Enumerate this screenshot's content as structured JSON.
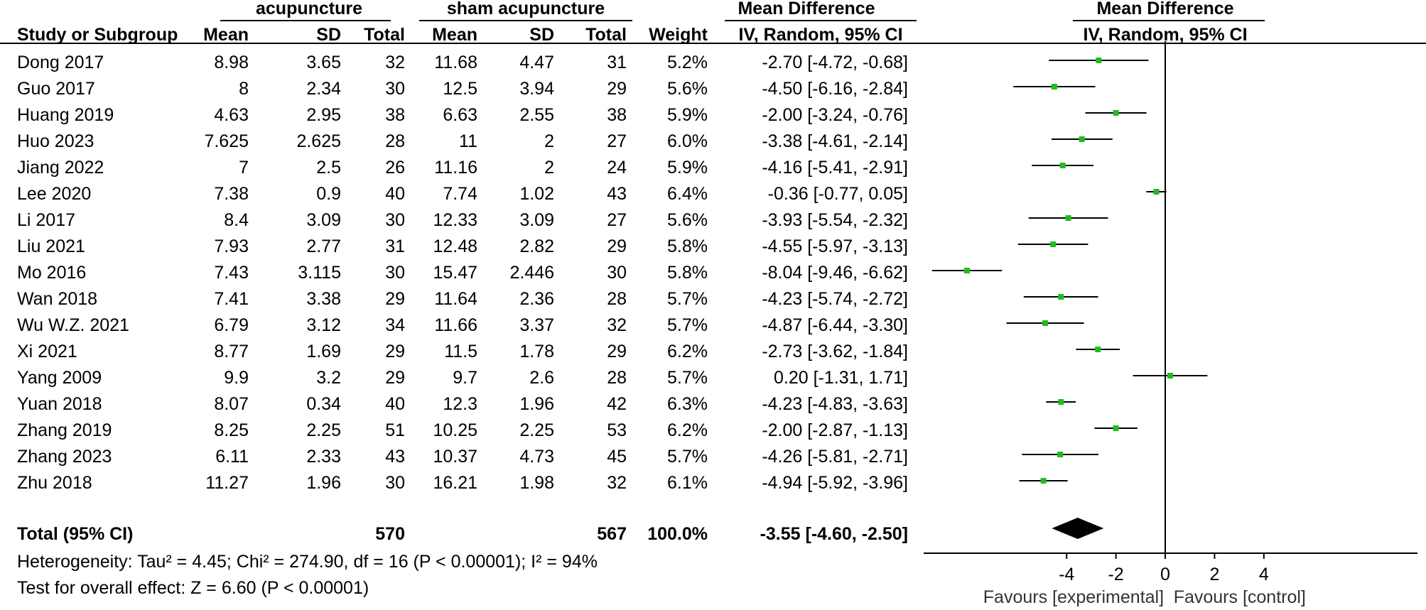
{
  "header": {
    "group1": "acupuncture",
    "group2": "sham acupuncture",
    "md_left": "Mean Difference",
    "md_right": "Mean Difference",
    "col_study": "Study or Subgroup",
    "col_mean1": "Mean",
    "col_sd1": "SD",
    "col_total1": "Total",
    "col_mean2": "Mean",
    "col_sd2": "SD",
    "col_total2": "Total",
    "col_weight": "Weight",
    "col_ci_left": "IV, Random, 95% CI",
    "col_ci_right": "IV, Random, 95% CI"
  },
  "studies": [
    {
      "study": "Dong 2017",
      "mean1": "8.98",
      "sd1": "3.65",
      "n1": "32",
      "mean2": "11.68",
      "sd2": "4.47",
      "n2": "31",
      "weight": "5.2%",
      "ci_text": "-2.70 [-4.72, -0.68]"
    },
    {
      "study": "Guo 2017",
      "mean1": "8",
      "sd1": "2.34",
      "n1": "30",
      "mean2": "12.5",
      "sd2": "3.94",
      "n2": "29",
      "weight": "5.6%",
      "ci_text": "-4.50 [-6.16, -2.84]"
    },
    {
      "study": "Huang 2019",
      "mean1": "4.63",
      "sd1": "2.95",
      "n1": "38",
      "mean2": "6.63",
      "sd2": "2.55",
      "n2": "38",
      "weight": "5.9%",
      "ci_text": "-2.00 [-3.24, -0.76]"
    },
    {
      "study": "Huo 2023",
      "mean1": "7.625",
      "sd1": "2.625",
      "n1": "28",
      "mean2": "11",
      "sd2": "2",
      "n2": "27",
      "weight": "6.0%",
      "ci_text": "-3.38 [-4.61, -2.14]"
    },
    {
      "study": "Jiang 2022",
      "mean1": "7",
      "sd1": "2.5",
      "n1": "26",
      "mean2": "11.16",
      "sd2": "2",
      "n2": "24",
      "weight": "5.9%",
      "ci_text": "-4.16 [-5.41, -2.91]"
    },
    {
      "study": "Lee 2020",
      "mean1": "7.38",
      "sd1": "0.9",
      "n1": "40",
      "mean2": "7.74",
      "sd2": "1.02",
      "n2": "43",
      "weight": "6.4%",
      "ci_text": "-0.36 [-0.77, 0.05]"
    },
    {
      "study": "Li 2017",
      "mean1": "8.4",
      "sd1": "3.09",
      "n1": "30",
      "mean2": "12.33",
      "sd2": "3.09",
      "n2": "27",
      "weight": "5.6%",
      "ci_text": "-3.93 [-5.54, -2.32]"
    },
    {
      "study": "Liu 2021",
      "mean1": "7.93",
      "sd1": "2.77",
      "n1": "31",
      "mean2": "12.48",
      "sd2": "2.82",
      "n2": "29",
      "weight": "5.8%",
      "ci_text": "-4.55 [-5.97, -3.13]"
    },
    {
      "study": "Mo 2016",
      "mean1": "7.43",
      "sd1": "3.115",
      "n1": "30",
      "mean2": "15.47",
      "sd2": "2.446",
      "n2": "30",
      "weight": "5.8%",
      "ci_text": "-8.04 [-9.46, -6.62]"
    },
    {
      "study": "Wan 2018",
      "mean1": "7.41",
      "sd1": "3.38",
      "n1": "29",
      "mean2": "11.64",
      "sd2": "2.36",
      "n2": "28",
      "weight": "5.7%",
      "ci_text": "-4.23 [-5.74, -2.72]"
    },
    {
      "study": "Wu W.Z. 2021",
      "mean1": "6.79",
      "sd1": "3.12",
      "n1": "34",
      "mean2": "11.66",
      "sd2": "3.37",
      "n2": "32",
      "weight": "5.7%",
      "ci_text": "-4.87 [-6.44, -3.30]"
    },
    {
      "study": "Xi 2021",
      "mean1": "8.77",
      "sd1": "1.69",
      "n1": "29",
      "mean2": "11.5",
      "sd2": "1.78",
      "n2": "29",
      "weight": "6.2%",
      "ci_text": "-2.73 [-3.62, -1.84]"
    },
    {
      "study": "Yang 2009",
      "mean1": "9.9",
      "sd1": "3.2",
      "n1": "29",
      "mean2": "9.7",
      "sd2": "2.6",
      "n2": "28",
      "weight": "5.7%",
      "ci_text": "0.20 [-1.31, 1.71]"
    },
    {
      "study": "Yuan 2018",
      "mean1": "8.07",
      "sd1": "0.34",
      "n1": "40",
      "mean2": "12.3",
      "sd2": "1.96",
      "n2": "42",
      "weight": "6.3%",
      "ci_text": "-4.23 [-4.83, -3.63]"
    },
    {
      "study": "Zhang 2019",
      "mean1": "8.25",
      "sd1": "2.25",
      "n1": "51",
      "mean2": "10.25",
      "sd2": "2.25",
      "n2": "53",
      "weight": "6.2%",
      "ci_text": "-2.00 [-2.87, -1.13]"
    },
    {
      "study": "Zhang 2023",
      "mean1": "6.11",
      "sd1": "2.33",
      "n1": "43",
      "mean2": "10.37",
      "sd2": "4.73",
      "n2": "45",
      "weight": "5.7%",
      "ci_text": "-4.26 [-5.81, -2.71]"
    },
    {
      "study": "Zhu 2018",
      "mean1": "11.27",
      "sd1": "1.96",
      "n1": "30",
      "mean2": "16.21",
      "sd2": "1.98",
      "n2": "32",
      "weight": "6.1%",
      "ci_text": "-4.94 [-5.92, -3.96]"
    }
  ],
  "total": {
    "label": "Total (95% CI)",
    "n1": "570",
    "n2": "567",
    "weight": "100.0%",
    "ci_text": "-3.55 [-4.60, -2.50]"
  },
  "footer": {
    "heterogeneity": "Heterogeneity: Tau² = 4.45; Chi² = 274.90, df = 16 (P < 0.00001); I² = 94%",
    "overall": "Test for overall effect: Z = 6.60 (P < 0.00001)"
  },
  "chart_data": {
    "type": "forest",
    "xlabel_left": "Favours [experimental]",
    "xlabel_right": "Favours [control]",
    "xticks": [
      -4,
      -2,
      0,
      2,
      4
    ],
    "x_range": [
      -9.5,
      5.0
    ],
    "null_line": 0,
    "marker_color": "#22bb22",
    "diamond_color": "#000000",
    "points": [
      {
        "label": "Dong 2017",
        "md": -2.7,
        "lo": -4.72,
        "hi": -0.68
      },
      {
        "label": "Guo 2017",
        "md": -4.5,
        "lo": -6.16,
        "hi": -2.84
      },
      {
        "label": "Huang 2019",
        "md": -2.0,
        "lo": -3.24,
        "hi": -0.76
      },
      {
        "label": "Huo 2023",
        "md": -3.38,
        "lo": -4.61,
        "hi": -2.14
      },
      {
        "label": "Jiang 2022",
        "md": -4.16,
        "lo": -5.41,
        "hi": -2.91
      },
      {
        "label": "Lee 2020",
        "md": -0.36,
        "lo": -0.77,
        "hi": 0.05
      },
      {
        "label": "Li 2017",
        "md": -3.93,
        "lo": -5.54,
        "hi": -2.32
      },
      {
        "label": "Liu 2021",
        "md": -4.55,
        "lo": -5.97,
        "hi": -3.13
      },
      {
        "label": "Mo 2016",
        "md": -8.04,
        "lo": -9.46,
        "hi": -6.62
      },
      {
        "label": "Wan 2018",
        "md": -4.23,
        "lo": -5.74,
        "hi": -2.72
      },
      {
        "label": "Wu W.Z. 2021",
        "md": -4.87,
        "lo": -6.44,
        "hi": -3.3
      },
      {
        "label": "Xi 2021",
        "md": -2.73,
        "lo": -3.62,
        "hi": -1.84
      },
      {
        "label": "Yang 2009",
        "md": 0.2,
        "lo": -1.31,
        "hi": 1.71
      },
      {
        "label": "Yuan 2018",
        "md": -4.23,
        "lo": -4.83,
        "hi": -3.63
      },
      {
        "label": "Zhang 2019",
        "md": -2.0,
        "lo": -2.87,
        "hi": -1.13
      },
      {
        "label": "Zhang 2023",
        "md": -4.26,
        "lo": -5.81,
        "hi": -2.71
      },
      {
        "label": "Zhu 2018",
        "md": -4.94,
        "lo": -5.92,
        "hi": -3.96
      }
    ],
    "pooled": {
      "label": "Total (95% CI)",
      "md": -3.55,
      "lo": -4.6,
      "hi": -2.5
    }
  }
}
